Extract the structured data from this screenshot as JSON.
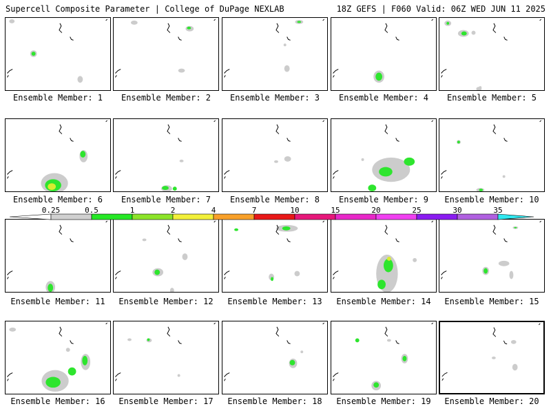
{
  "header": {
    "left": "Supercell Composite Parameter | College of DuPage NEXLAB",
    "right": "18Z GEFS | F060 Valid: 06Z WED JUN 11 2025"
  },
  "legend": {
    "ticks": [
      "0.25",
      "0.5",
      "1",
      "2",
      "4",
      "7",
      "10",
      "15",
      "20",
      "25",
      "30",
      "35"
    ],
    "colors": [
      "#d0d0d0",
      "#26e826",
      "#8ce42a",
      "#f2f03a",
      "#f8a02a",
      "#e81818",
      "#e6187a",
      "#e828c8",
      "#f040f0",
      "#8a1cf0",
      "#b060e0",
      "#30e8f0"
    ]
  },
  "panels": [
    {
      "label": "Ensemble Member: 1"
    },
    {
      "label": "Ensemble Member: 2"
    },
    {
      "label": "Ensemble Member: 3"
    },
    {
      "label": "Ensemble Member: 4"
    },
    {
      "label": "Ensemble Member: 5"
    },
    {
      "label": "Ensemble Member: 6"
    },
    {
      "label": "Ensemble Member: 7"
    },
    {
      "label": "Ensemble Member: 8"
    },
    {
      "label": "Ensemble Member: 9"
    },
    {
      "label": "Ensemble Member: 10"
    },
    {
      "label": "Ensemble Member: 11"
    },
    {
      "label": "Ensemble Member: 12"
    },
    {
      "label": "Ensemble Member: 13"
    },
    {
      "label": "Ensemble Member: 14"
    },
    {
      "label": "Ensemble Member: 15"
    },
    {
      "label": "Ensemble Member: 16"
    },
    {
      "label": "Ensemble Member: 17"
    },
    {
      "label": "Ensemble Member: 18"
    },
    {
      "label": "Ensemble Member: 19"
    },
    {
      "label": "Ensemble Member: 20",
      "selected": true
    }
  ]
}
